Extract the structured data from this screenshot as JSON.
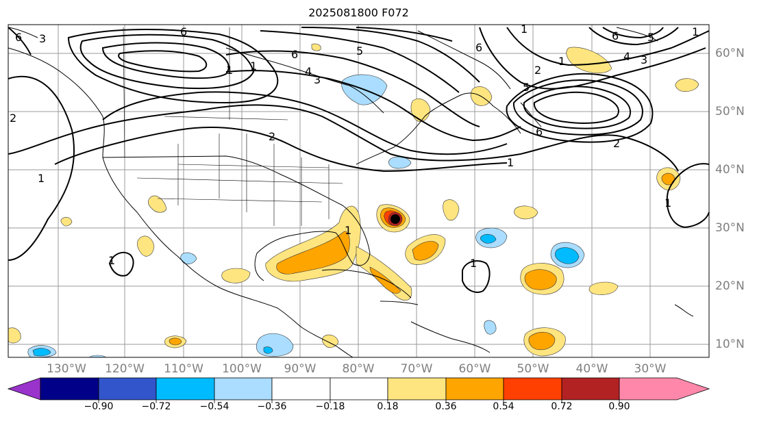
{
  "title": "2025081800 F072",
  "map": {
    "lon_labels": [
      "130°W",
      "120°W",
      "110°W",
      "100°W",
      "90°W",
      "80°W",
      "70°W",
      "60°W",
      "50°W",
      "40°W",
      "30°W"
    ],
    "lat_labels": [
      "60°N",
      "50°N",
      "40°N",
      "30°N",
      "20°N",
      "10°N"
    ],
    "contour_labels": [
      "6",
      "3",
      "6",
      "6",
      "5",
      "4",
      "3",
      "1",
      "1",
      "2",
      "2",
      "1",
      "1",
      "1",
      "1",
      "1",
      "1",
      "6",
      "1",
      "2",
      "5",
      "6",
      "2",
      "1",
      "1",
      "6",
      "5",
      "4",
      "3"
    ]
  },
  "colorbar": {
    "tick_labels": [
      "−0.90",
      "−0.72",
      "−0.54",
      "−0.36",
      "−0.18",
      "0.18",
      "0.36",
      "0.54",
      "0.72",
      "0.90"
    ],
    "colors": [
      "#9933cc",
      "#000088",
      "#3355cc",
      "#00bbff",
      "#aaddff",
      "#ffffff",
      "#ffe580",
      "#ffa500",
      "#ff4000",
      "#b22222",
      "#ff88aa"
    ]
  }
}
